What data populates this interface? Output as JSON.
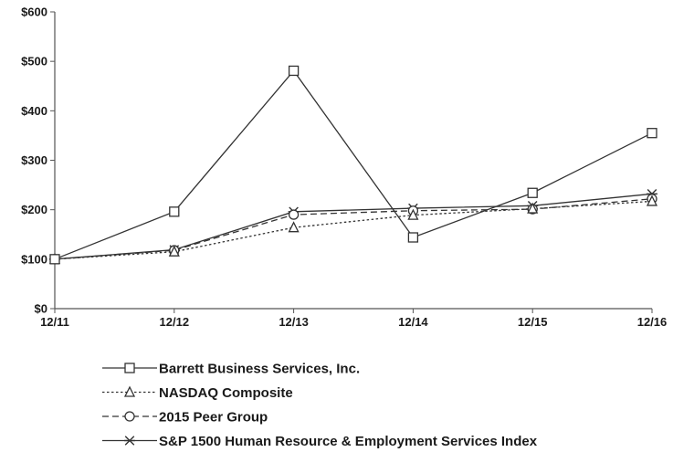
{
  "chart_data": {
    "type": "line",
    "title": "",
    "xlabel": "",
    "ylabel": "",
    "categories": [
      "12/11",
      "12/12",
      "12/13",
      "12/14",
      "12/15",
      "12/16"
    ],
    "y_tick_labels": [
      "$0",
      "$100",
      "$200",
      "$300",
      "$400",
      "$500",
      "$600"
    ],
    "ylim": [
      0,
      600
    ],
    "grid": false,
    "legend_position": "bottom",
    "series": [
      {
        "name": "Barrett Business Services, Inc.",
        "values": [
          100,
          196,
          481,
          144,
          234,
          355
        ],
        "marker": "square",
        "line_style": "solid",
        "color": "#333333"
      },
      {
        "name": "NASDAQ Composite",
        "values": [
          100,
          115,
          164,
          189,
          202,
          217
        ],
        "marker": "triangle",
        "line_style": "dotted",
        "color": "#333333"
      },
      {
        "name": "2015 Peer Group",
        "values": [
          100,
          118,
          190,
          198,
          201,
          222
        ],
        "marker": "circle",
        "line_style": "dashed",
        "color": "#333333"
      },
      {
        "name": "S&P 1500 Human Resource & Employment Services Index",
        "values": [
          100,
          119,
          196,
          203,
          208,
          232
        ],
        "marker": "asterisk",
        "line_style": "solid",
        "color": "#333333"
      }
    ]
  }
}
